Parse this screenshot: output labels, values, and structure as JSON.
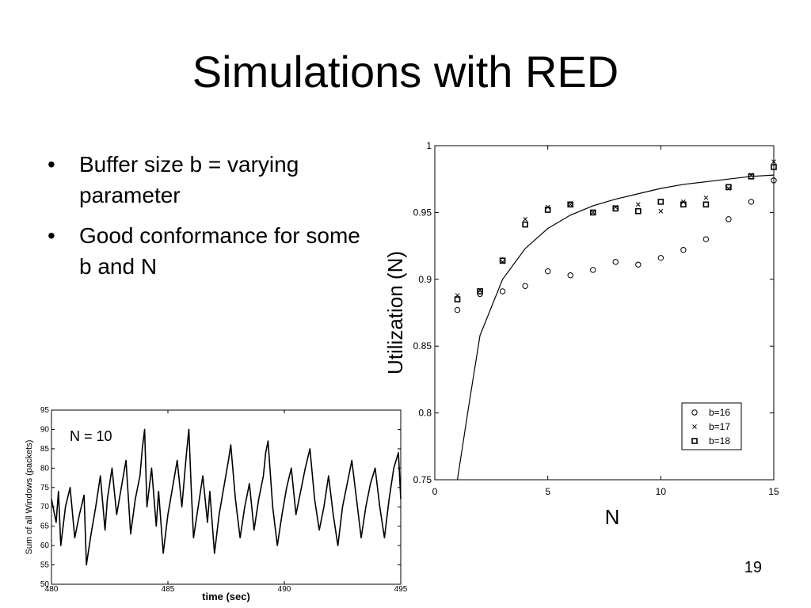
{
  "slide": {
    "title": "Simulations with RED",
    "bullets": [
      "Buffer size b = varying parameter",
      "Good conformance for some b and N"
    ],
    "bullet_symbol": "•",
    "page_number": "19"
  },
  "chart_data": [
    {
      "type": "scatter",
      "title": "",
      "xlabel": "N",
      "ylabel": "Utilization (N)",
      "xlim": [
        0,
        15
      ],
      "ylim": [
        0.75,
        1
      ],
      "xticks": [
        "0",
        "5",
        "10",
        "15"
      ],
      "yticks": [
        "0.75",
        "0.8",
        "0.85",
        "0.9",
        "0.95",
        "1"
      ],
      "legend_position": "bottom-right",
      "grid": false,
      "curve": {
        "x": [
          1,
          1.5,
          2,
          3,
          4,
          5,
          6,
          7,
          8,
          9,
          10,
          11,
          12,
          13,
          14,
          15
        ],
        "y": [
          0.75,
          0.805,
          0.858,
          0.9,
          0.923,
          0.938,
          0.948,
          0.955,
          0.96,
          0.964,
          0.968,
          0.971,
          0.973,
          0.975,
          0.977,
          0.978
        ]
      },
      "series": [
        {
          "name": "b=16",
          "marker": "circle",
          "x": [
            1,
            2,
            3,
            4,
            5,
            6,
            7,
            8,
            9,
            10,
            11,
            12,
            13,
            14,
            15
          ],
          "y": [
            0.877,
            0.889,
            0.891,
            0.895,
            0.906,
            0.903,
            0.907,
            0.913,
            0.911,
            0.916,
            0.922,
            0.93,
            0.945,
            0.958,
            0.974
          ]
        },
        {
          "name": "b=17",
          "marker": "x",
          "x": [
            1,
            2,
            3,
            4,
            5,
            6,
            7,
            8,
            9,
            10,
            11,
            12,
            13,
            14,
            15
          ],
          "y": [
            0.888,
            0.892,
            0.913,
            0.945,
            0.954,
            0.956,
            0.95,
            0.954,
            0.956,
            0.951,
            0.958,
            0.961,
            0.968,
            0.978,
            0.988
          ]
        },
        {
          "name": "b=18",
          "marker": "square",
          "x": [
            1,
            2,
            3,
            4,
            5,
            6,
            7,
            8,
            9,
            10,
            11,
            12,
            13,
            14,
            15
          ],
          "y": [
            0.885,
            0.891,
            0.914,
            0.941,
            0.952,
            0.956,
            0.95,
            0.953,
            0.951,
            0.958,
            0.956,
            0.956,
            0.969,
            0.977,
            0.984
          ]
        }
      ]
    },
    {
      "type": "line",
      "title": "",
      "xlabel": "time (sec)",
      "ylabel": "Sum of all Windows (packets)",
      "annotation": "N = 10",
      "xlim": [
        480,
        495
      ],
      "ylim": [
        50,
        95
      ],
      "xticks": [
        "480",
        "485",
        "490",
        "495"
      ],
      "yticks": [
        "50",
        "55",
        "60",
        "65",
        "70",
        "75",
        "80",
        "85",
        "90",
        "95"
      ],
      "x": [
        480,
        480.2,
        480.3,
        480.4,
        480.6,
        480.8,
        481,
        481.2,
        481.4,
        481.5,
        481.7,
        481.9,
        482.1,
        482.3,
        482.4,
        482.6,
        482.8,
        483.0,
        483.2,
        483.4,
        483.6,
        483.8,
        483.9,
        484.0,
        484.1,
        484.3,
        484.5,
        484.6,
        484.8,
        485.0,
        485.2,
        485.4,
        485.6,
        485.8,
        485.9,
        486.0,
        486.1,
        486.3,
        486.5,
        486.7,
        486.8,
        487.0,
        487.2,
        487.4,
        487.6,
        487.7,
        487.9,
        488.1,
        488.3,
        488.5,
        488.7,
        488.9,
        489.1,
        489.2,
        489.3,
        489.5,
        489.7,
        489.9,
        490.1,
        490.3,
        490.5,
        490.7,
        490.9,
        491.1,
        491.3,
        491.5,
        491.7,
        491.9,
        492.1,
        492.3,
        492.5,
        492.7,
        492.9,
        493.1,
        493.3,
        493.5,
        493.7,
        493.9,
        494.1,
        494.3,
        494.5,
        494.7,
        494.9,
        495
      ],
      "y": [
        72,
        66,
        74,
        60,
        70,
        75,
        62,
        68,
        73,
        55,
        63,
        70,
        78,
        64,
        72,
        80,
        68,
        75,
        82,
        63,
        72,
        78,
        85,
        90,
        70,
        80,
        65,
        74,
        58,
        68,
        75,
        82,
        70,
        84,
        90,
        75,
        62,
        70,
        78,
        66,
        74,
        58,
        68,
        75,
        82,
        86,
        72,
        62,
        70,
        76,
        64,
        72,
        78,
        84,
        87,
        70,
        60,
        68,
        75,
        80,
        68,
        74,
        80,
        85,
        72,
        64,
        70,
        78,
        68,
        60,
        70,
        76,
        82,
        72,
        62,
        70,
        76,
        80,
        70,
        62,
        72,
        80,
        84,
        72
      ]
    }
  ]
}
